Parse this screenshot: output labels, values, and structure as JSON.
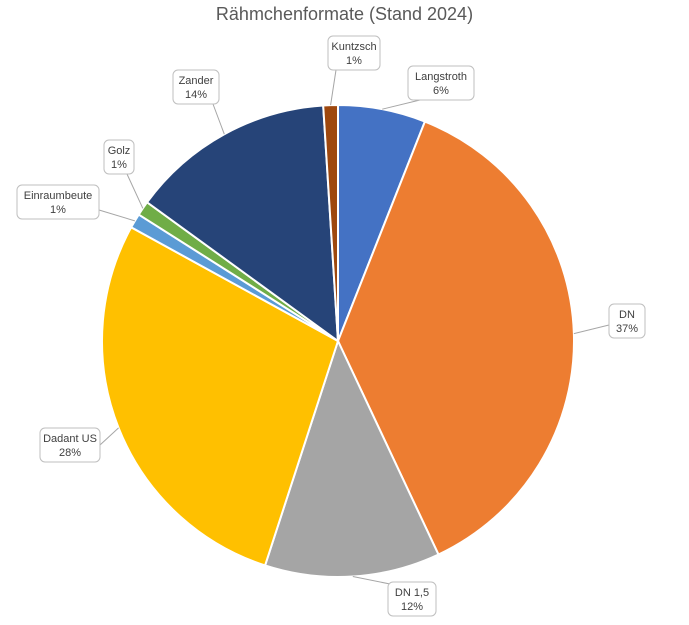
{
  "chart_data": {
    "type": "pie",
    "title": "Rähmchenformate (Stand 2024)",
    "slices": [
      {
        "label": "Langstroth",
        "value": 6,
        "value_label": "6%",
        "color": "#4472C4"
      },
      {
        "label": "DN",
        "value": 37,
        "value_label": "37%",
        "color": "#ED7D31"
      },
      {
        "label": "DN 1,5",
        "value": 12,
        "value_label": "12%",
        "color": "#A5A5A5"
      },
      {
        "label": "Dadant US",
        "value": 28,
        "value_label": "28%",
        "color": "#FFC000"
      },
      {
        "label": "Einraumbeute",
        "value": 1,
        "value_label": "1%",
        "color": "#5B9BD5"
      },
      {
        "label": "Golz",
        "value": 1,
        "value_label": "1%",
        "color": "#70AD47"
      },
      {
        "label": "Zander",
        "value": 14,
        "value_label": "14%",
        "color": "#264478"
      },
      {
        "label": "Kuntzsch",
        "value": 1,
        "value_label": "1%",
        "color": "#9E480E"
      }
    ],
    "start_angle_deg": 0,
    "direction": "clockwise",
    "legend": "none",
    "data_labels": "callouts"
  }
}
